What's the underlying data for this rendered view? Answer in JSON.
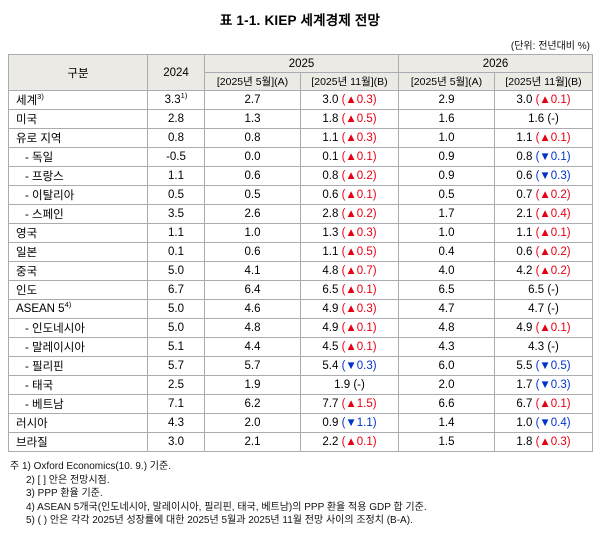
{
  "title": "표 1-1. KIEP 세계경제 전망",
  "unit_note": "(단위: 전년대비 %)",
  "colors": {
    "up": "#e60012",
    "down": "#0033cc"
  },
  "table": {
    "header": {
      "category": "구분",
      "y2024": "2024",
      "y2025": "2025",
      "y2026": "2026",
      "sub2025a": "[2025년 5월](A)",
      "sub2025b": "[2025년 11월](B)",
      "sub2026a": "[2025년 5월](A)",
      "sub2026b": "[2025년 11월](B)"
    },
    "rows": [
      {
        "label": "세계",
        "sup": "3)",
        "indent": false,
        "y2024": "3.3",
        "y2024_sup": "1)",
        "a2025": "2.7",
        "b2025": "3.0",
        "adj2025": "(▲0.3)",
        "dir2025": "up",
        "a2026": "2.9",
        "b2026": "3.0",
        "adj2026": "(▲0.1)",
        "dir2026": "up"
      },
      {
        "label": "미국",
        "sup": "",
        "indent": false,
        "y2024": "2.8",
        "y2024_sup": "",
        "a2025": "1.3",
        "b2025": "1.8",
        "adj2025": "(▲0.5)",
        "dir2025": "up",
        "a2026": "1.6",
        "b2026": "1.6",
        "adj2026": "(-)",
        "dir2026": "none"
      },
      {
        "label": "유로 지역",
        "sup": "",
        "indent": false,
        "y2024": "0.8",
        "y2024_sup": "",
        "a2025": "0.8",
        "b2025": "1.1",
        "adj2025": "(▲0.3)",
        "dir2025": "up",
        "a2026": "1.0",
        "b2026": "1.1",
        "adj2026": "(▲0.1)",
        "dir2026": "up"
      },
      {
        "label": "- 독일",
        "sup": "",
        "indent": true,
        "y2024": "-0.5",
        "y2024_sup": "",
        "a2025": "0.0",
        "b2025": "0.1",
        "adj2025": "(▲0.1)",
        "dir2025": "up",
        "a2026": "0.9",
        "b2026": "0.8",
        "adj2026": "(▼0.1)",
        "dir2026": "down"
      },
      {
        "label": "- 프랑스",
        "sup": "",
        "indent": true,
        "y2024": "1.1",
        "y2024_sup": "",
        "a2025": "0.6",
        "b2025": "0.8",
        "adj2025": "(▲0.2)",
        "dir2025": "up",
        "a2026": "0.9",
        "b2026": "0.6",
        "adj2026": "(▼0.3)",
        "dir2026": "down"
      },
      {
        "label": "- 이탈리아",
        "sup": "",
        "indent": true,
        "y2024": "0.5",
        "y2024_sup": "",
        "a2025": "0.5",
        "b2025": "0.6",
        "adj2025": "(▲0.1)",
        "dir2025": "up",
        "a2026": "0.5",
        "b2026": "0.7",
        "adj2026": "(▲0.2)",
        "dir2026": "up"
      },
      {
        "label": "- 스페인",
        "sup": "",
        "indent": true,
        "y2024": "3.5",
        "y2024_sup": "",
        "a2025": "2.6",
        "b2025": "2.8",
        "adj2025": "(▲0.2)",
        "dir2025": "up",
        "a2026": "1.7",
        "b2026": "2.1",
        "adj2026": "(▲0.4)",
        "dir2026": "up"
      },
      {
        "label": "영국",
        "sup": "",
        "indent": false,
        "y2024": "1.1",
        "y2024_sup": "",
        "a2025": "1.0",
        "b2025": "1.3",
        "adj2025": "(▲0.3)",
        "dir2025": "up",
        "a2026": "1.0",
        "b2026": "1.1",
        "adj2026": "(▲0.1)",
        "dir2026": "up"
      },
      {
        "label": "일본",
        "sup": "",
        "indent": false,
        "y2024": "0.1",
        "y2024_sup": "",
        "a2025": "0.6",
        "b2025": "1.1",
        "adj2025": "(▲0.5)",
        "dir2025": "up",
        "a2026": "0.4",
        "b2026": "0.6",
        "adj2026": "(▲0.2)",
        "dir2026": "up"
      },
      {
        "label": "중국",
        "sup": "",
        "indent": false,
        "y2024": "5.0",
        "y2024_sup": "",
        "a2025": "4.1",
        "b2025": "4.8",
        "adj2025": "(▲0.7)",
        "dir2025": "up",
        "a2026": "4.0",
        "b2026": "4.2",
        "adj2026": "(▲0.2)",
        "dir2026": "up"
      },
      {
        "label": "인도",
        "sup": "",
        "indent": false,
        "y2024": "6.7",
        "y2024_sup": "",
        "a2025": "6.4",
        "b2025": "6.5",
        "adj2025": "(▲0.1)",
        "dir2025": "up",
        "a2026": "6.5",
        "b2026": "6.5",
        "adj2026": "(-)",
        "dir2026": "none"
      },
      {
        "label": "ASEAN 5",
        "sup": "4)",
        "indent": false,
        "y2024": "5.0",
        "y2024_sup": "",
        "a2025": "4.6",
        "b2025": "4.9",
        "adj2025": "(▲0.3)",
        "dir2025": "up",
        "a2026": "4.7",
        "b2026": "4.7",
        "adj2026": "(-)",
        "dir2026": "none"
      },
      {
        "label": "- 인도네시아",
        "sup": "",
        "indent": true,
        "y2024": "5.0",
        "y2024_sup": "",
        "a2025": "4.8",
        "b2025": "4.9",
        "adj2025": "(▲0.1)",
        "dir2025": "up",
        "a2026": "4.8",
        "b2026": "4.9",
        "adj2026": "(▲0.1)",
        "dir2026": "up"
      },
      {
        "label": "- 말레이시아",
        "sup": "",
        "indent": true,
        "y2024": "5.1",
        "y2024_sup": "",
        "a2025": "4.4",
        "b2025": "4.5",
        "adj2025": "(▲0.1)",
        "dir2025": "up",
        "a2026": "4.3",
        "b2026": "4.3",
        "adj2026": "(-)",
        "dir2026": "none"
      },
      {
        "label": "- 필리핀",
        "sup": "",
        "indent": true,
        "y2024": "5.7",
        "y2024_sup": "",
        "a2025": "5.7",
        "b2025": "5.4",
        "adj2025": "(▼0.3)",
        "dir2025": "down",
        "a2026": "6.0",
        "b2026": "5.5",
        "adj2026": "(▼0.5)",
        "dir2026": "down"
      },
      {
        "label": "- 태국",
        "sup": "",
        "indent": true,
        "y2024": "2.5",
        "y2024_sup": "",
        "a2025": "1.9",
        "b2025": "1.9",
        "adj2025": "(-)",
        "dir2025": "none",
        "a2026": "2.0",
        "b2026": "1.7",
        "adj2026": "(▼0.3)",
        "dir2026": "down"
      },
      {
        "label": "- 베트남",
        "sup": "",
        "indent": true,
        "y2024": "7.1",
        "y2024_sup": "",
        "a2025": "6.2",
        "b2025": "7.7",
        "adj2025": "(▲1.5)",
        "dir2025": "up",
        "a2026": "6.6",
        "b2026": "6.7",
        "adj2026": "(▲0.1)",
        "dir2026": "up"
      },
      {
        "label": "러시아",
        "sup": "",
        "indent": false,
        "y2024": "4.3",
        "y2024_sup": "",
        "a2025": "2.0",
        "b2025": "0.9",
        "adj2025": "(▼1.1)",
        "dir2025": "down",
        "a2026": "1.4",
        "b2026": "1.0",
        "adj2026": "(▼0.4)",
        "dir2026": "down"
      },
      {
        "label": "브라질",
        "sup": "",
        "indent": false,
        "y2024": "3.0",
        "y2024_sup": "",
        "a2025": "2.1",
        "b2025": "2.2",
        "adj2025": "(▲0.1)",
        "dir2025": "up",
        "a2026": "1.5",
        "b2026": "1.8",
        "adj2026": "(▲0.3)",
        "dir2026": "up"
      }
    ]
  },
  "footnotes": {
    "prefix": "주 ",
    "lines": [
      "1) Oxford Economics(10. 9.) 기준.",
      "2) [ ] 안은 전망시점.",
      "3) PPP 환율 기준.",
      "4) ASEAN 5개국(인도네시아, 말레이시아, 필리핀, 태국, 베트남)의 PPP 환율 적용 GDP 합 기준.",
      "5) ( ) 안은 각각 2025년 성장률에 대한 2025년 5월과 2025년 11월 전망 사이의 조정치 (B-A)."
    ]
  }
}
